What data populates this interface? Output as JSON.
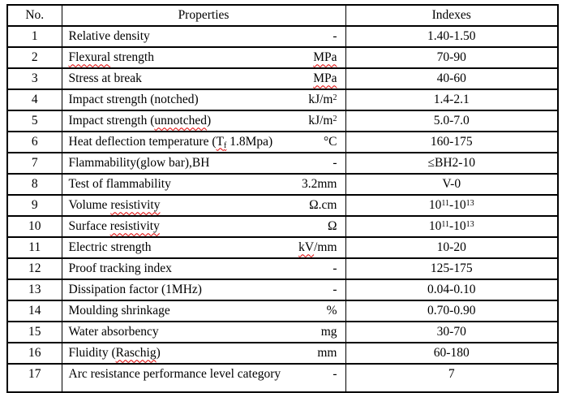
{
  "page": {
    "background": "#ffffff"
  },
  "table": {
    "border_color": "#000000",
    "text_color": "#000000",
    "squiggle_color": "#e00000",
    "header": {
      "no": "No.",
      "properties": "Properties",
      "indexes": "Indexes"
    },
    "rows": [
      {
        "no": "1",
        "property": [
          {
            "t": "Relative density"
          }
        ],
        "unit": [
          {
            "t": "-"
          }
        ],
        "index": [
          {
            "t": "1.40-1.50"
          }
        ]
      },
      {
        "no": "2",
        "property": [
          {
            "t": "Flexural",
            "wavy": true
          },
          {
            "t": " strength"
          }
        ],
        "unit": [
          {
            "t": "MPa",
            "wavy": true
          }
        ],
        "index": [
          {
            "t": "70-90"
          }
        ]
      },
      {
        "no": "3",
        "property": [
          {
            "t": "Stress at break"
          }
        ],
        "unit": [
          {
            "t": "MPa",
            "wavy": true
          }
        ],
        "index": [
          {
            "t": "40-60"
          }
        ]
      },
      {
        "no": "4",
        "property": [
          {
            "t": "Impact strength (notched)"
          }
        ],
        "unit": [
          {
            "t": "kJ/m"
          },
          {
            "t": "2",
            "sup": true
          }
        ],
        "index": [
          {
            "t": "1.4-2.1"
          }
        ]
      },
      {
        "no": "5",
        "property": [
          {
            "t": "Impact strength ("
          },
          {
            "t": "unnotched",
            "wavy": true
          },
          {
            "t": ")"
          }
        ],
        "unit": [
          {
            "t": "kJ/m"
          },
          {
            "t": "2",
            "sup": true
          }
        ],
        "index": [
          {
            "t": "5.0-7.0"
          }
        ]
      },
      {
        "no": "6",
        "property": [
          {
            "t": "Heat deflection temperature ("
          },
          {
            "wavy": true,
            "parts": [
              {
                "t": "T"
              },
              {
                "t": "f",
                "sub": true
              }
            ]
          },
          {
            "t": " 1.8Mpa)"
          }
        ],
        "unit": [
          {
            "t": "°C"
          }
        ],
        "index": [
          {
            "t": "160-175"
          }
        ]
      },
      {
        "no": "7",
        "property": [
          {
            "t": "Flammability(glow bar),BH"
          }
        ],
        "unit": [
          {
            "t": "-"
          }
        ],
        "index": [
          {
            "t": "≤BH2-10"
          }
        ]
      },
      {
        "no": "8",
        "property": [
          {
            "t": "Test of flammability"
          }
        ],
        "unit": [
          {
            "t": "3.2mm"
          }
        ],
        "index": [
          {
            "t": "V-0"
          }
        ]
      },
      {
        "no": "9",
        "property": [
          {
            "t": "Volume "
          },
          {
            "t": "resistivity",
            "wavy": true
          }
        ],
        "unit": [
          {
            "t": "Ω.cm"
          }
        ],
        "index": [
          {
            "t": "10"
          },
          {
            "t": "11",
            "sup": true
          },
          {
            "t": "-10"
          },
          {
            "t": "13",
            "sup": true
          }
        ]
      },
      {
        "no": "10",
        "property": [
          {
            "t": "Surface "
          },
          {
            "t": "resistivity",
            "wavy": true
          }
        ],
        "unit": [
          {
            "t": "Ω"
          }
        ],
        "index": [
          {
            "t": "10"
          },
          {
            "t": "11",
            "sup": true
          },
          {
            "t": "-10"
          },
          {
            "t": "13",
            "sup": true
          }
        ]
      },
      {
        "no": "11",
        "property": [
          {
            "t": "Electric strength"
          }
        ],
        "unit": [
          {
            "t": "kV",
            "wavy": true
          },
          {
            "t": "/mm"
          }
        ],
        "index": [
          {
            "t": "10-20"
          }
        ]
      },
      {
        "no": "12",
        "property": [
          {
            "t": "Proof tracking index"
          }
        ],
        "unit": [
          {
            "t": "-"
          }
        ],
        "index": [
          {
            "t": "125-175"
          }
        ]
      },
      {
        "no": "13",
        "property": [
          {
            "t": "Dissipation factor (1MHz)"
          }
        ],
        "unit": [
          {
            "t": "-"
          }
        ],
        "index": [
          {
            "t": "0.04-0.10"
          }
        ]
      },
      {
        "no": "14",
        "property": [
          {
            "t": "Moulding shrinkage"
          }
        ],
        "unit": [
          {
            "t": "%"
          }
        ],
        "index": [
          {
            "t": "0.70-0.90"
          }
        ]
      },
      {
        "no": "15",
        "property": [
          {
            "t": "Water absorbency"
          }
        ],
        "unit": [
          {
            "t": "mg"
          }
        ],
        "index": [
          {
            "t": "30-70"
          }
        ]
      },
      {
        "no": "16",
        "property": [
          {
            "t": "Fluidity ("
          },
          {
            "t": "Raschig",
            "wavy": true
          },
          {
            "t": ")"
          }
        ],
        "unit": [
          {
            "t": "mm"
          }
        ],
        "index": [
          {
            "t": "60-180"
          }
        ]
      },
      {
        "no": "17",
        "property": [
          {
            "t": "Arc resistance performance level category"
          }
        ],
        "unit": [
          {
            "t": "-"
          }
        ],
        "index": [
          {
            "t": "7"
          }
        ]
      }
    ]
  }
}
